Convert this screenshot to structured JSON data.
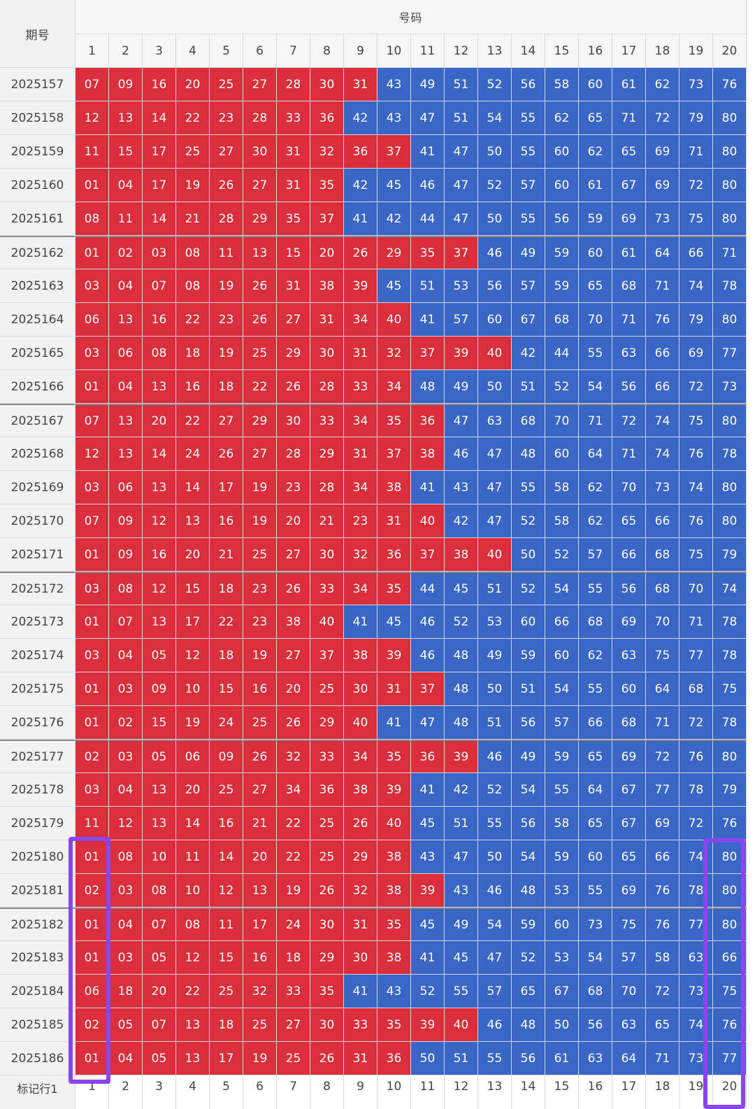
{
  "table": {
    "header_period_label": "期号",
    "header_numbers_label": "号码",
    "columns": [
      "1",
      "2",
      "3",
      "4",
      "5",
      "6",
      "7",
      "8",
      "9",
      "10",
      "11",
      "12",
      "13",
      "14",
      "15",
      "16",
      "17",
      "18",
      "19",
      "20"
    ],
    "footer_label": "标记行1",
    "footer_values": [
      "1",
      "2",
      "3",
      "4",
      "5",
      "6",
      "7",
      "8",
      "9",
      "10",
      "11",
      "12",
      "13",
      "14",
      "15",
      "16",
      "17",
      "18",
      "19",
      "20"
    ]
  },
  "colors": {
    "small": "#dc2e3a",
    "large": "#3a66c8",
    "highlight": "#8b45f0"
  },
  "rows": [
    {
      "period": "2025157",
      "numbers": [
        "07",
        "09",
        "16",
        "20",
        "25",
        "27",
        "28",
        "30",
        "31",
        "43",
        "49",
        "51",
        "52",
        "56",
        "58",
        "60",
        "61",
        "62",
        "73",
        "76"
      ],
      "red_count": 9
    },
    {
      "period": "2025158",
      "numbers": [
        "12",
        "13",
        "14",
        "22",
        "23",
        "28",
        "33",
        "36",
        "42",
        "43",
        "47",
        "51",
        "54",
        "55",
        "62",
        "65",
        "71",
        "72",
        "79",
        "80"
      ],
      "red_count": 8
    },
    {
      "period": "2025159",
      "numbers": [
        "11",
        "15",
        "17",
        "25",
        "27",
        "30",
        "31",
        "32",
        "36",
        "37",
        "41",
        "47",
        "50",
        "55",
        "60",
        "62",
        "65",
        "69",
        "71",
        "80"
      ],
      "red_count": 10
    },
    {
      "period": "2025160",
      "numbers": [
        "01",
        "04",
        "17",
        "19",
        "26",
        "27",
        "31",
        "35",
        "42",
        "45",
        "46",
        "47",
        "52",
        "57",
        "60",
        "61",
        "67",
        "69",
        "72",
        "80"
      ],
      "red_count": 8
    },
    {
      "period": "2025161",
      "numbers": [
        "08",
        "11",
        "14",
        "21",
        "28",
        "29",
        "35",
        "37",
        "41",
        "42",
        "44",
        "47",
        "50",
        "55",
        "56",
        "59",
        "69",
        "73",
        "75",
        "80"
      ],
      "red_count": 8
    },
    {
      "period": "2025162",
      "numbers": [
        "01",
        "02",
        "03",
        "08",
        "11",
        "13",
        "15",
        "20",
        "26",
        "29",
        "35",
        "37",
        "46",
        "49",
        "59",
        "60",
        "61",
        "64",
        "66",
        "71"
      ],
      "red_count": 12
    },
    {
      "period": "2025163",
      "numbers": [
        "03",
        "04",
        "07",
        "08",
        "19",
        "26",
        "31",
        "38",
        "39",
        "45",
        "51",
        "53",
        "56",
        "57",
        "59",
        "65",
        "68",
        "71",
        "74",
        "78"
      ],
      "red_count": 9
    },
    {
      "period": "2025164",
      "numbers": [
        "06",
        "13",
        "16",
        "22",
        "23",
        "26",
        "27",
        "31",
        "34",
        "40",
        "41",
        "57",
        "60",
        "67",
        "68",
        "70",
        "71",
        "76",
        "79",
        "80"
      ],
      "red_count": 10
    },
    {
      "period": "2025165",
      "numbers": [
        "03",
        "06",
        "08",
        "18",
        "19",
        "25",
        "29",
        "30",
        "31",
        "32",
        "37",
        "39",
        "40",
        "42",
        "44",
        "55",
        "63",
        "66",
        "69",
        "77"
      ],
      "red_count": 13
    },
    {
      "period": "2025166",
      "numbers": [
        "01",
        "04",
        "13",
        "16",
        "18",
        "22",
        "26",
        "28",
        "33",
        "34",
        "48",
        "49",
        "50",
        "51",
        "52",
        "54",
        "56",
        "66",
        "72",
        "73"
      ],
      "red_count": 10
    },
    {
      "period": "2025167",
      "numbers": [
        "07",
        "13",
        "20",
        "22",
        "27",
        "29",
        "30",
        "33",
        "34",
        "35",
        "36",
        "47",
        "63",
        "68",
        "70",
        "71",
        "72",
        "74",
        "75",
        "80"
      ],
      "red_count": 11
    },
    {
      "period": "2025168",
      "numbers": [
        "12",
        "13",
        "14",
        "24",
        "26",
        "27",
        "28",
        "29",
        "31",
        "37",
        "38",
        "46",
        "47",
        "48",
        "60",
        "64",
        "71",
        "74",
        "76",
        "78"
      ],
      "red_count": 11
    },
    {
      "period": "2025169",
      "numbers": [
        "03",
        "06",
        "13",
        "14",
        "17",
        "19",
        "23",
        "28",
        "34",
        "38",
        "41",
        "43",
        "47",
        "55",
        "58",
        "62",
        "70",
        "73",
        "74",
        "80"
      ],
      "red_count": 10
    },
    {
      "period": "2025170",
      "numbers": [
        "07",
        "09",
        "12",
        "13",
        "16",
        "19",
        "20",
        "21",
        "23",
        "31",
        "40",
        "42",
        "47",
        "52",
        "58",
        "62",
        "65",
        "66",
        "76",
        "80"
      ],
      "red_count": 11
    },
    {
      "period": "2025171",
      "numbers": [
        "01",
        "09",
        "16",
        "20",
        "21",
        "25",
        "27",
        "30",
        "32",
        "36",
        "37",
        "38",
        "40",
        "50",
        "52",
        "57",
        "66",
        "68",
        "75",
        "79"
      ],
      "red_count": 13
    },
    {
      "period": "2025172",
      "numbers": [
        "03",
        "08",
        "12",
        "15",
        "18",
        "23",
        "26",
        "33",
        "34",
        "35",
        "44",
        "45",
        "51",
        "52",
        "54",
        "55",
        "56",
        "68",
        "70",
        "74"
      ],
      "red_count": 10
    },
    {
      "period": "2025173",
      "numbers": [
        "01",
        "07",
        "13",
        "17",
        "22",
        "23",
        "38",
        "40",
        "41",
        "45",
        "46",
        "52",
        "53",
        "60",
        "66",
        "68",
        "69",
        "70",
        "71",
        "78"
      ],
      "red_count": 8
    },
    {
      "period": "2025174",
      "numbers": [
        "03",
        "04",
        "05",
        "12",
        "18",
        "19",
        "27",
        "37",
        "38",
        "39",
        "46",
        "48",
        "49",
        "59",
        "60",
        "62",
        "63",
        "75",
        "77",
        "78"
      ],
      "red_count": 10
    },
    {
      "period": "2025175",
      "numbers": [
        "01",
        "03",
        "09",
        "10",
        "15",
        "16",
        "20",
        "25",
        "30",
        "31",
        "37",
        "48",
        "50",
        "51",
        "54",
        "55",
        "60",
        "64",
        "68",
        "75"
      ],
      "red_count": 11
    },
    {
      "period": "2025176",
      "numbers": [
        "01",
        "02",
        "15",
        "19",
        "24",
        "25",
        "26",
        "29",
        "40",
        "41",
        "47",
        "48",
        "51",
        "56",
        "57",
        "66",
        "68",
        "71",
        "72",
        "78"
      ],
      "red_count": 9
    },
    {
      "period": "2025177",
      "numbers": [
        "02",
        "03",
        "05",
        "06",
        "09",
        "26",
        "32",
        "33",
        "34",
        "35",
        "36",
        "39",
        "46",
        "49",
        "59",
        "65",
        "69",
        "72",
        "76",
        "80"
      ],
      "red_count": 12
    },
    {
      "period": "2025178",
      "numbers": [
        "03",
        "04",
        "13",
        "20",
        "25",
        "27",
        "34",
        "36",
        "38",
        "39",
        "41",
        "42",
        "52",
        "54",
        "55",
        "64",
        "67",
        "77",
        "78",
        "79"
      ],
      "red_count": 10
    },
    {
      "period": "2025179",
      "numbers": [
        "11",
        "12",
        "13",
        "14",
        "16",
        "21",
        "22",
        "25",
        "26",
        "40",
        "45",
        "51",
        "55",
        "56",
        "58",
        "65",
        "67",
        "69",
        "72",
        "76"
      ],
      "red_count": 10
    },
    {
      "period": "2025180",
      "numbers": [
        "01",
        "08",
        "10",
        "11",
        "14",
        "20",
        "22",
        "25",
        "29",
        "38",
        "43",
        "47",
        "50",
        "54",
        "59",
        "60",
        "65",
        "66",
        "74",
        "80"
      ],
      "red_count": 10
    },
    {
      "period": "2025181",
      "numbers": [
        "02",
        "03",
        "08",
        "10",
        "12",
        "13",
        "19",
        "26",
        "32",
        "38",
        "39",
        "43",
        "46",
        "48",
        "53",
        "55",
        "69",
        "76",
        "78",
        "80"
      ],
      "red_count": 11
    },
    {
      "period": "2025182",
      "numbers": [
        "01",
        "04",
        "07",
        "08",
        "11",
        "17",
        "24",
        "30",
        "31",
        "35",
        "45",
        "49",
        "54",
        "59",
        "60",
        "73",
        "75",
        "76",
        "77",
        "80"
      ],
      "red_count": 10
    },
    {
      "period": "2025183",
      "numbers": [
        "01",
        "03",
        "05",
        "12",
        "15",
        "16",
        "18",
        "29",
        "30",
        "38",
        "41",
        "45",
        "47",
        "52",
        "53",
        "54",
        "57",
        "58",
        "63",
        "66"
      ],
      "red_count": 10
    },
    {
      "period": "2025184",
      "numbers": [
        "06",
        "18",
        "20",
        "22",
        "25",
        "32",
        "33",
        "35",
        "41",
        "43",
        "52",
        "55",
        "57",
        "65",
        "67",
        "68",
        "70",
        "72",
        "73",
        "75"
      ],
      "red_count": 8
    },
    {
      "period": "2025185",
      "numbers": [
        "02",
        "05",
        "07",
        "13",
        "18",
        "25",
        "27",
        "30",
        "33",
        "35",
        "39",
        "40",
        "46",
        "48",
        "50",
        "56",
        "63",
        "65",
        "74",
        "76"
      ],
      "red_count": 12
    },
    {
      "period": "2025186",
      "numbers": [
        "01",
        "04",
        "05",
        "13",
        "17",
        "19",
        "25",
        "26",
        "31",
        "36",
        "50",
        "51",
        "55",
        "56",
        "61",
        "63",
        "64",
        "71",
        "73",
        "77"
      ],
      "red_count": 10
    }
  ],
  "group_separators_before_rows": [
    5,
    10,
    15,
    20,
    25
  ]
}
